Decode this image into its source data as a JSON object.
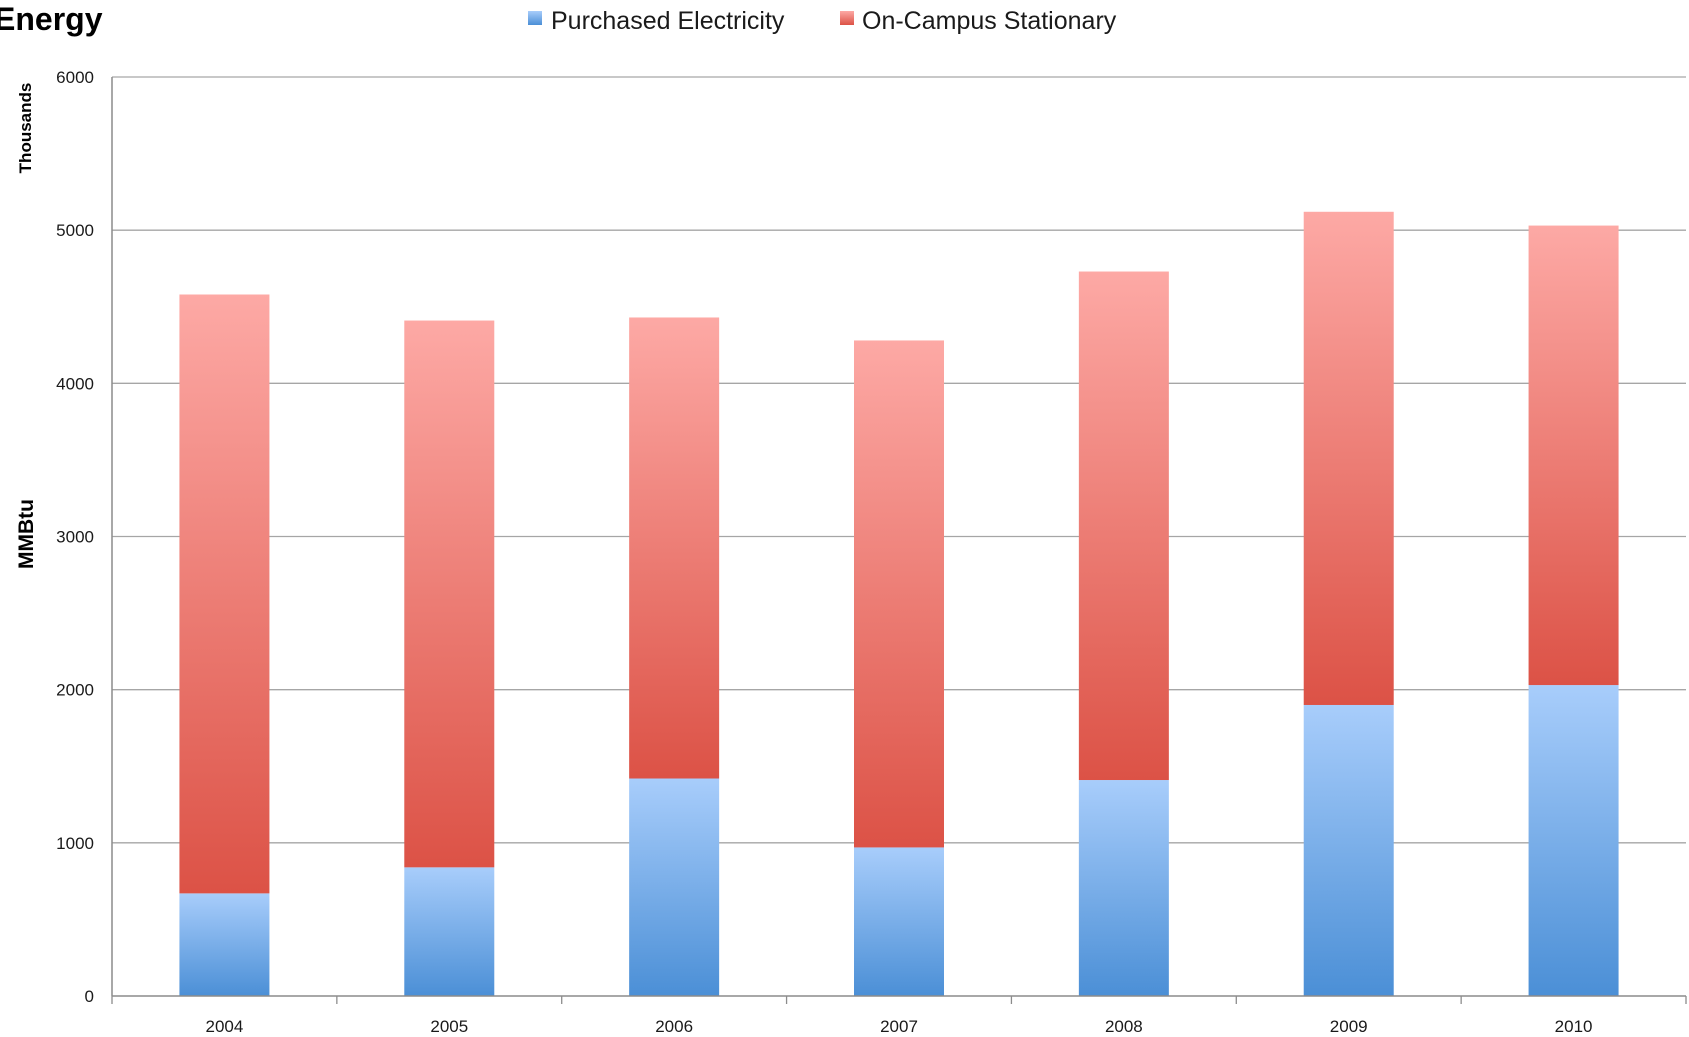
{
  "chart_data": {
    "type": "bar",
    "stacked": true,
    "title": "Energy",
    "ylabel": "MMBtu",
    "yunit_label": "Thousands",
    "xlabel": "",
    "categories": [
      "2004",
      "2005",
      "2006",
      "2007",
      "2008",
      "2009",
      "2010"
    ],
    "series": [
      {
        "name": "Purchased Electricity",
        "values": [
          670,
          840,
          1420,
          970,
          1410,
          1900,
          2030
        ],
        "color_top": "#a8cdfb",
        "color_bottom": "#4b8fd6"
      },
      {
        "name": "On-Campus Stationary",
        "values": [
          3910,
          3570,
          3010,
          3310,
          3320,
          3220,
          3000
        ],
        "color_top": "#fda9a5",
        "color_bottom": "#dc5246"
      }
    ],
    "ylim": [
      0,
      6000
    ],
    "yticks": [
      "0",
      "1000",
      "2000",
      "3000",
      "4000",
      "5000",
      "6000"
    ],
    "grid": true,
    "legend_position": "top-center"
  }
}
